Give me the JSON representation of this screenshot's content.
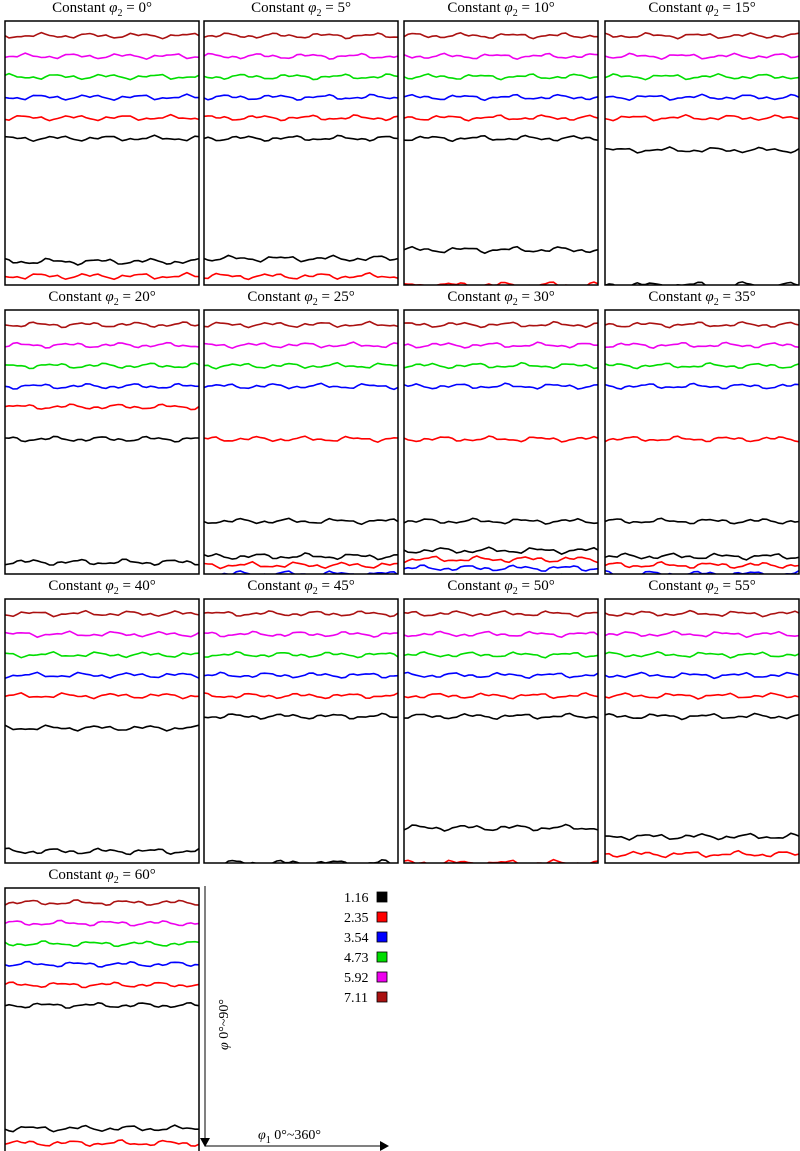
{
  "chart_data": {
    "type": "line",
    "title_prefix": "Constant ",
    "title_phi_symbol": "φ",
    "title_phi_subscript": "2",
    "title_equals": " = ",
    "panels": [
      {
        "phi2": "0°"
      },
      {
        "phi2": "5°"
      },
      {
        "phi2": "10°"
      },
      {
        "phi2": "15°"
      },
      {
        "phi2": "20°"
      },
      {
        "phi2": "25°"
      },
      {
        "phi2": "30°"
      },
      {
        "phi2": "35°"
      },
      {
        "phi2": "40°"
      },
      {
        "phi2": "45°"
      },
      {
        "phi2": "50°"
      },
      {
        "phi2": "55°"
      },
      {
        "phi2": "60°"
      }
    ],
    "xlabel": {
      "symbol": "φ",
      "subscript": "1",
      "range": " 0°~360°"
    },
    "ylabel": {
      "symbol": "φ",
      "range": " 0°~90°"
    },
    "xlim": [
      0,
      360
    ],
    "ylim": [
      0,
      90
    ],
    "levels": [
      {
        "value": "1.16",
        "color": "#000000"
      },
      {
        "value": "2.35",
        "color": "#ff0000"
      },
      {
        "value": "3.54",
        "color": "#0000ff"
      },
      {
        "value": "4.73",
        "color": "#00dd00"
      },
      {
        "value": "5.92",
        "color": "#ee00ee"
      },
      {
        "value": "7.11",
        "color": "#aa1111"
      }
    ],
    "panel_contours": [
      {
        "top": [
          [
            7.11,
            5
          ],
          [
            5.92,
            12
          ],
          [
            4.73,
            19
          ],
          [
            3.54,
            26
          ],
          [
            2.35,
            33
          ],
          [
            1.16,
            40
          ]
        ],
        "bottom": [
          [
            1.16,
            82
          ],
          [
            2.35,
            87
          ],
          [
            3.54,
            93
          ]
        ]
      },
      {
        "top": [
          [
            7.11,
            5
          ],
          [
            5.92,
            12
          ],
          [
            4.73,
            19
          ],
          [
            3.54,
            26
          ],
          [
            2.35,
            33
          ],
          [
            1.16,
            40
          ]
        ],
        "bottom": [
          [
            1.16,
            81
          ],
          [
            2.35,
            87
          ]
        ]
      },
      {
        "top": [
          [
            7.11,
            5
          ],
          [
            5.92,
            12
          ],
          [
            4.73,
            19
          ],
          [
            3.54,
            26
          ],
          [
            2.35,
            33
          ],
          [
            1.16,
            40
          ]
        ],
        "bottom": [
          [
            1.16,
            78
          ],
          [
            2.35,
            90
          ]
        ]
      },
      {
        "top": [
          [
            7.11,
            5
          ],
          [
            5.92,
            12
          ],
          [
            4.73,
            19
          ],
          [
            3.54,
            26
          ],
          [
            2.35,
            33
          ],
          [
            1.16,
            44
          ]
        ],
        "bottom": [
          [
            1.16,
            90
          ]
        ]
      },
      {
        "top": [
          [
            7.11,
            5
          ],
          [
            5.92,
            12
          ],
          [
            4.73,
            19
          ],
          [
            3.54,
            26
          ],
          [
            2.35,
            33
          ],
          [
            1.16,
            44
          ]
        ],
        "bottom": [
          [
            1.16,
            86
          ]
        ]
      },
      {
        "top": [
          [
            7.11,
            5
          ],
          [
            5.92,
            12
          ],
          [
            4.73,
            19
          ],
          [
            3.54,
            26
          ],
          [
            2.35,
            44
          ],
          [
            1.16,
            72
          ]
        ],
        "bottom": [
          [
            1.16,
            84
          ],
          [
            2.35,
            87
          ],
          [
            3.54,
            90
          ],
          [
            4.73,
            94
          ]
        ]
      },
      {
        "top": [
          [
            7.11,
            5
          ],
          [
            5.92,
            12
          ],
          [
            4.73,
            19
          ],
          [
            3.54,
            26
          ],
          [
            2.35,
            44
          ],
          [
            1.16,
            72
          ]
        ],
        "bottom": [
          [
            1.16,
            82
          ],
          [
            2.35,
            85
          ],
          [
            3.54,
            88
          ],
          [
            4.73,
            91
          ],
          [
            5.92,
            95
          ]
        ]
      },
      {
        "top": [
          [
            7.11,
            5
          ],
          [
            5.92,
            12
          ],
          [
            4.73,
            19
          ],
          [
            3.54,
            26
          ],
          [
            2.35,
            44
          ],
          [
            1.16,
            72
          ]
        ],
        "bottom": [
          [
            1.16,
            84
          ],
          [
            2.35,
            87
          ],
          [
            3.54,
            90
          ],
          [
            4.73,
            94
          ]
        ]
      },
      {
        "top": [
          [
            7.11,
            5
          ],
          [
            5.92,
            12
          ],
          [
            4.73,
            19
          ],
          [
            3.54,
            26
          ],
          [
            2.35,
            33
          ],
          [
            1.16,
            44
          ]
        ],
        "bottom": [
          [
            1.16,
            86
          ]
        ]
      },
      {
        "top": [
          [
            7.11,
            5
          ],
          [
            5.92,
            12
          ],
          [
            4.73,
            19
          ],
          [
            3.54,
            26
          ],
          [
            2.35,
            33
          ],
          [
            1.16,
            40
          ]
        ],
        "bottom": [
          [
            1.16,
            90
          ]
        ]
      },
      {
        "top": [
          [
            7.11,
            5
          ],
          [
            5.92,
            12
          ],
          [
            4.73,
            19
          ],
          [
            3.54,
            26
          ],
          [
            2.35,
            33
          ],
          [
            1.16,
            40
          ]
        ],
        "bottom": [
          [
            1.16,
            78
          ],
          [
            2.35,
            90
          ]
        ]
      },
      {
        "top": [
          [
            7.11,
            5
          ],
          [
            5.92,
            12
          ],
          [
            4.73,
            19
          ],
          [
            3.54,
            26
          ],
          [
            2.35,
            33
          ],
          [
            1.16,
            40
          ]
        ],
        "bottom": [
          [
            1.16,
            81
          ],
          [
            2.35,
            87
          ]
        ]
      },
      {
        "top": [
          [
            7.11,
            5
          ],
          [
            5.92,
            12
          ],
          [
            4.73,
            19
          ],
          [
            3.54,
            26
          ],
          [
            2.35,
            33
          ],
          [
            1.16,
            40
          ]
        ],
        "bottom": [
          [
            1.16,
            82
          ],
          [
            2.35,
            87
          ],
          [
            3.54,
            93
          ]
        ]
      }
    ]
  }
}
